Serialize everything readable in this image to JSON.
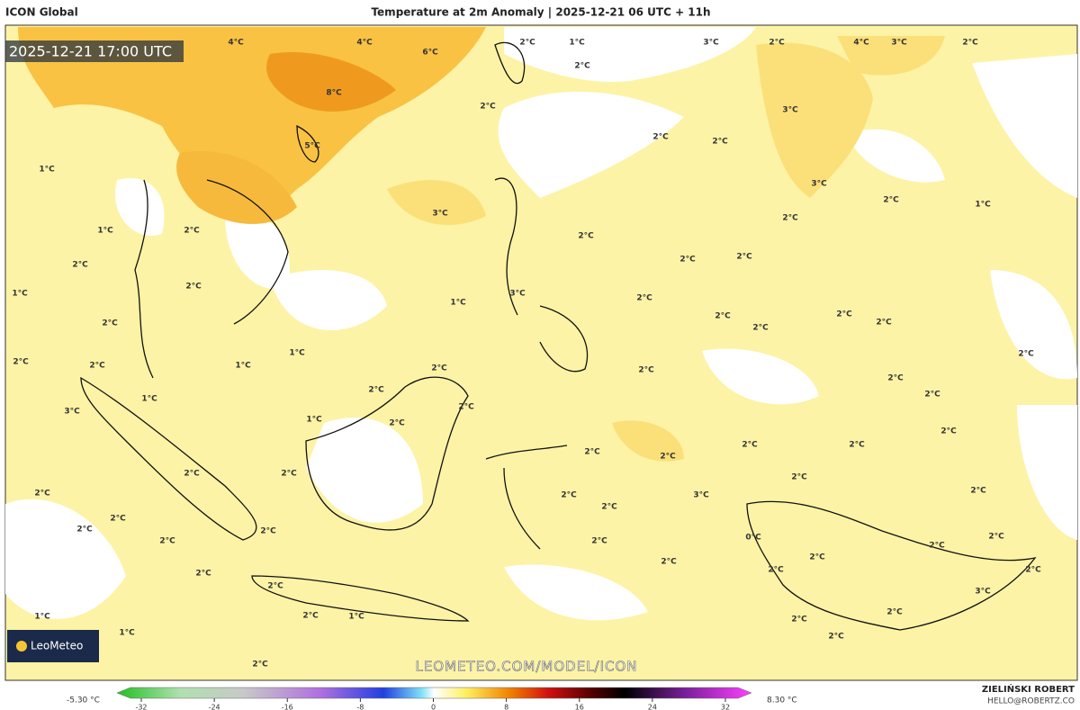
{
  "header": {
    "model": "ICON Global",
    "title": "Temperature at 2m Anomaly | 2025-12-21 06 UTC + 11h"
  },
  "map": {
    "valid_time": "2025-12-21 17:00 UTC",
    "logo": "LeoMeteo",
    "watermark": "LEOMETEO.COM/MODEL/ICON",
    "labels": [
      "4°C",
      "4°C",
      "6°C",
      "2°C",
      "1°C",
      "3°C",
      "2°C",
      "4°C",
      "3°C",
      "2°C",
      "2°C",
      "8°C",
      "5°C",
      "2°C",
      "2°C",
      "2°C",
      "3°C",
      "1°C",
      "3°C",
      "2°C",
      "1°C",
      "3°C",
      "2°C",
      "1°C",
      "2°C",
      "2°C",
      "2°C",
      "2°C",
      "2°C",
      "2°C",
      "1°C",
      "3°C",
      "1°C",
      "2°C",
      "2°C",
      "2°C",
      "2°C",
      "2°C",
      "2°C",
      "1°C",
      "2°C",
      "2°C",
      "2°C",
      "1°C",
      "2°C",
      "2°C",
      "2°C",
      "2°C",
      "2°C",
      "1°C",
      "2°C",
      "3°C",
      "1°C",
      "2°C",
      "2°C",
      "2°C",
      "2°C",
      "2°C",
      "2°C",
      "2°C",
      "2°C",
      "2°C",
      "2°C",
      "3°C",
      "2°C",
      "2°C",
      "2°C",
      "2°C",
      "2°C",
      "2°C",
      "0°C",
      "2°C",
      "2°C",
      "2°C",
      "2°C",
      "2°C",
      "2°C",
      "2°C",
      "2°C",
      "2°C",
      "3°C",
      "2°C",
      "2°C",
      "2°C",
      "1°C",
      "2°C",
      "1°C",
      "1°C",
      "2°C",
      "2°C"
    ]
  },
  "colorbar": {
    "min_label": "-5.30 °C",
    "max_label": "8.30 °C",
    "range": [
      -32,
      32
    ],
    "ticks": [
      -32,
      -24,
      -16,
      -8,
      0,
      8,
      16,
      24,
      32
    ]
  },
  "footer": {
    "author": "ZIELIŃSKI ROBERT",
    "email": "HELLO@ROBERTZ.CO"
  }
}
